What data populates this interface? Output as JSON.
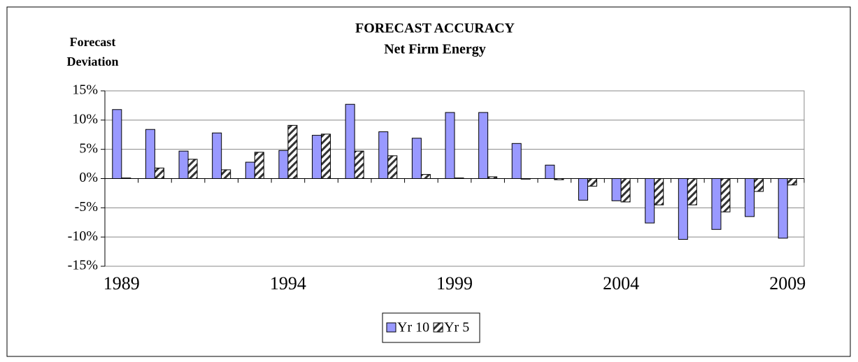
{
  "chart_data": {
    "type": "bar",
    "title": "FORECAST ACCURACY",
    "subtitle": "Net Firm Energy",
    "y_label": "Forecast Deviation",
    "categories": [
      "1989",
      null,
      null,
      null,
      null,
      "1994",
      null,
      null,
      null,
      null,
      "1999",
      null,
      null,
      null,
      null,
      "2004",
      null,
      null,
      null,
      null,
      "2009"
    ],
    "series": [
      {
        "name": "Yr 10",
        "color": "#9999ff",
        "hatch": false,
        "values": [
          11.8,
          8.4,
          4.7,
          7.8,
          2.8,
          4.8,
          7.4,
          12.7,
          8.0,
          6.9,
          11.3,
          11.3,
          6.0,
          2.3,
          -3.7,
          -3.8,
          -7.6,
          -10.4,
          -8.7,
          -6.5,
          -10.2
        ]
      },
      {
        "name": "Yr 5",
        "color": "#ffffff",
        "hatch": true,
        "values": [
          0.1,
          1.8,
          3.3,
          1.5,
          4.5,
          9.1,
          7.6,
          4.7,
          3.9,
          0.7,
          0.1,
          0.3,
          -0.1,
          -0.2,
          -1.3,
          -4.0,
          -4.5,
          -4.5,
          -5.7,
          -2.2,
          -1.1
        ]
      }
    ],
    "ylim": [
      -15,
      15
    ],
    "yticks": [
      {
        "value": -15,
        "label": "-15%"
      },
      {
        "value": -10,
        "label": "-10%"
      },
      {
        "value": -5,
        "label": "-5%"
      },
      {
        "value": 0,
        "label": "0%"
      },
      {
        "value": 5,
        "label": "5%"
      },
      {
        "value": 10,
        "label": "10%"
      },
      {
        "value": 15,
        "label": "15%"
      }
    ],
    "grid": true,
    "legend": "bottom"
  }
}
